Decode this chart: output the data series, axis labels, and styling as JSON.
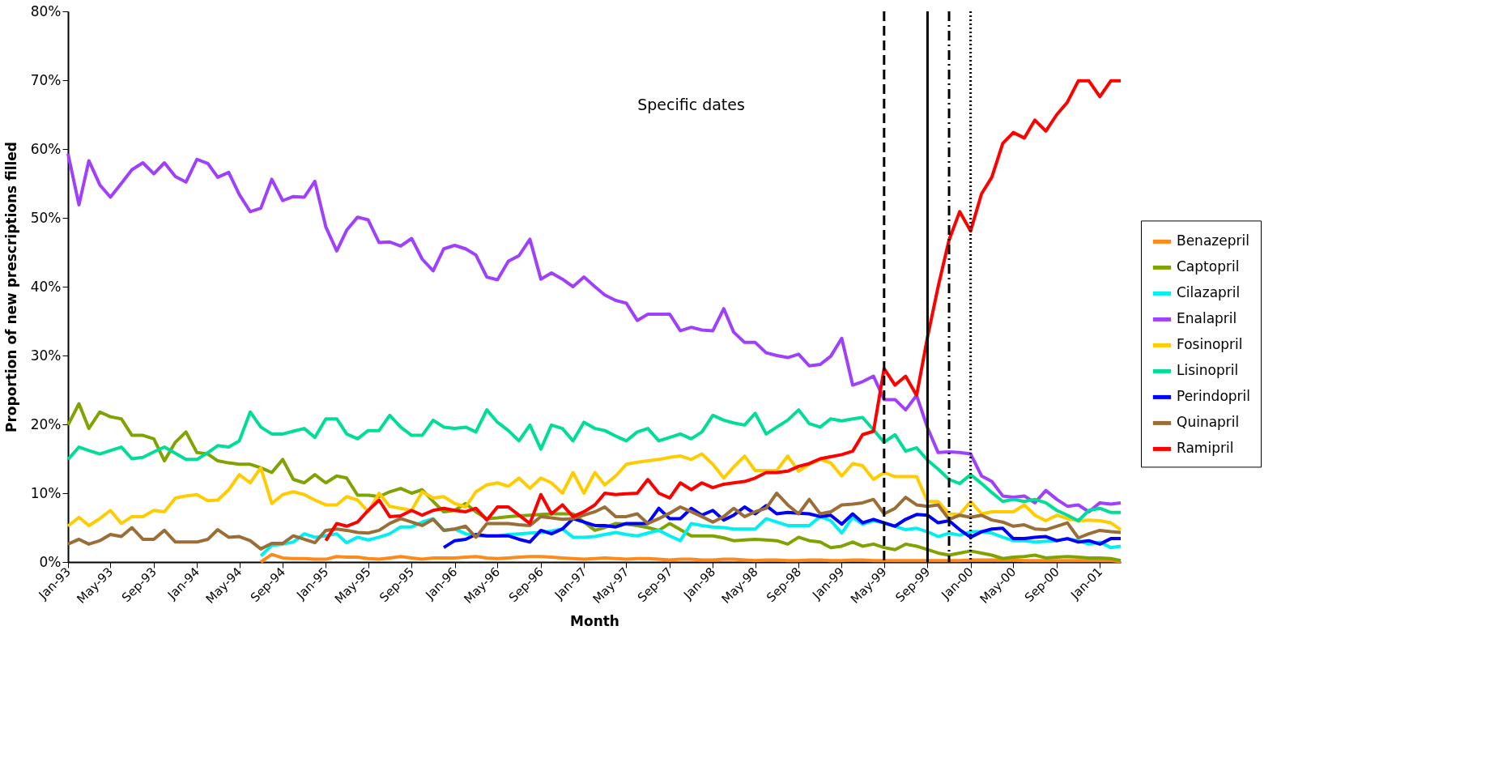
{
  "chart_data": {
    "type": "line",
    "xlabel": "Month",
    "ylabel": "Proportion of new prescriptions filled",
    "x": [
      "1993-01",
      "1993-02",
      "1993-03",
      "1993-04",
      "1993-05",
      "1993-06",
      "1993-07",
      "1993-08",
      "1993-09",
      "1993-10",
      "1993-11",
      "1993-12",
      "1994-01",
      "1994-02",
      "1994-03",
      "1994-04",
      "1994-05",
      "1994-06",
      "1994-07",
      "1994-08",
      "1994-09",
      "1994-10",
      "1994-11",
      "1994-12",
      "1995-01",
      "1995-02",
      "1995-03",
      "1995-04",
      "1995-05",
      "1995-06",
      "1995-07",
      "1995-08",
      "1995-09",
      "1995-10",
      "1995-11",
      "1995-12",
      "1996-01",
      "1996-02",
      "1996-03",
      "1996-04",
      "1996-05",
      "1996-06",
      "1996-07",
      "1996-08",
      "1996-09",
      "1996-10",
      "1996-11",
      "1996-12",
      "1997-01",
      "1997-02",
      "1997-03",
      "1997-04",
      "1997-05",
      "1997-06",
      "1997-07",
      "1997-08",
      "1997-09",
      "1997-10",
      "1997-11",
      "1997-12",
      "1998-01",
      "1998-02",
      "1998-03",
      "1998-04",
      "1998-05",
      "1998-06",
      "1998-07",
      "1998-08",
      "1998-09",
      "1998-10",
      "1998-11",
      "1998-12",
      "1999-01",
      "1999-02",
      "1999-03",
      "1999-04",
      "1999-05",
      "1999-06",
      "1999-07",
      "1999-08",
      "1999-09",
      "1999-10",
      "1999-11",
      "1999-12",
      "2000-01",
      "2000-02",
      "2000-03",
      "2000-04",
      "2000-05",
      "2000-06",
      "2000-07",
      "2000-08",
      "2000-09",
      "2000-10",
      "2000-11",
      "2000-12",
      "2001-01",
      "2001-02",
      "2001-03"
    ],
    "series": [
      {
        "name": "Benazepril",
        "color": "#ff8a1c",
        "values": [
          null,
          null,
          null,
          null,
          null,
          null,
          null,
          null,
          null,
          null,
          null,
          null,
          null,
          null,
          null,
          null,
          null,
          null,
          0,
          1.1,
          0.6,
          0.5,
          0.5,
          0.4,
          0.4,
          0.8,
          0.7,
          0.7,
          0.5,
          0.4,
          0.6,
          0.8,
          0.6,
          0.4,
          0.6,
          0.6,
          0.6,
          0.7,
          0.8,
          0.6,
          0.5,
          0.6,
          0.7,
          0.8,
          0.8,
          0.7,
          0.6,
          0.5,
          0.4,
          0.5,
          0.6,
          0.5,
          0.4,
          0.5,
          0.5,
          0.4,
          0.3,
          0.4,
          0.4,
          0.3,
          0.3,
          0.4,
          0.4,
          0.3,
          0.2,
          0.3,
          0.3,
          0.2,
          0.2,
          0.3,
          0.3,
          0.2,
          0.2,
          0.3,
          0.3,
          0.2,
          0.2,
          0.2,
          0.2,
          0.2,
          0.2,
          0.2,
          0.2,
          0.2,
          0.3,
          0.3,
          0.3,
          0.3,
          0.3,
          0.2,
          0.2,
          0.2,
          0.2,
          0.2,
          0.2,
          0.2,
          0.2,
          0.2,
          0.1
        ]
      },
      {
        "name": "Captopril",
        "color": "#7fa300",
        "values": [
          19.9,
          23,
          19.4,
          21.8,
          21.1,
          20.8,
          18.4,
          18.4,
          17.9,
          14.7,
          17.4,
          18.9,
          15.9,
          15.7,
          14.7,
          14.4,
          14.2,
          14.2,
          13.7,
          13,
          14.9,
          12,
          11.5,
          12.7,
          11.5,
          12.5,
          12.2,
          9.7,
          9.7,
          9.5,
          10.2,
          10.7,
          10,
          10.5,
          8.8,
          7.3,
          7.5,
          8.5,
          7.3,
          6.3,
          6.4,
          6.6,
          6.7,
          6.8,
          6.9,
          7,
          7,
          7,
          5.8,
          4.6,
          5,
          5.6,
          5.5,
          5.3,
          5,
          4.6,
          5.6,
          4.7,
          3.8,
          3.8,
          3.8,
          3.5,
          3.1,
          3.2,
          3.3,
          3.2,
          3.1,
          2.6,
          3.6,
          3.1,
          2.9,
          2.1,
          2.3,
          2.9,
          2.3,
          2.6,
          2.1,
          1.8,
          2.6,
          2.3,
          1.8,
          1.3,
          1,
          1.3,
          1.6,
          1.3,
          1,
          0.5,
          0.7,
          0.8,
          1,
          0.6,
          0.7,
          0.8,
          0.7,
          0.6,
          0.6,
          0.5,
          0.2
        ]
      },
      {
        "name": "Cilazapril",
        "color": "#00f0f0",
        "values": [
          null,
          null,
          null,
          null,
          null,
          null,
          null,
          null,
          null,
          null,
          null,
          null,
          null,
          null,
          null,
          null,
          null,
          null,
          0.9,
          2.4,
          2.6,
          2.9,
          4.1,
          3.6,
          3.8,
          4.1,
          2.8,
          3.6,
          3.2,
          3.6,
          4.1,
          5.1,
          5.1,
          5.8,
          6.3,
          4.6,
          4.8,
          4.1,
          3.8,
          3.8,
          3.8,
          4,
          4.1,
          4.2,
          4.3,
          4.5,
          4.8,
          3.6,
          3.6,
          3.7,
          4,
          4.3,
          4,
          3.8,
          4.2,
          4.6,
          3.8,
          3.1,
          5.6,
          5.3,
          5.1,
          5,
          4.8,
          4.8,
          4.8,
          6.3,
          5.8,
          5.3,
          5.3,
          5.3,
          6.6,
          6,
          4.2,
          6.5,
          5.5,
          6,
          5.7,
          5.2,
          4.7,
          4.9,
          4.4,
          3.7,
          4.2,
          3.9,
          4.4,
          4.4,
          4.2,
          3.6,
          3.1,
          3.1,
          2.9,
          3,
          3.1,
          3.4,
          3.1,
          2.6,
          2.9,
          2.1,
          2.3
        ]
      },
      {
        "name": "Enalapril",
        "color": "#a040ff",
        "values": [
          59.3,
          51.9,
          58.3,
          54.8,
          53,
          55,
          57,
          58,
          56.4,
          58,
          56,
          55.2,
          58.5,
          57.9,
          55.9,
          56.6,
          53.4,
          50.9,
          51.4,
          55.6,
          52.5,
          53.1,
          53,
          55.3,
          48.7,
          45.2,
          48.2,
          50.1,
          49.7,
          46.4,
          46.5,
          45.9,
          47,
          44,
          42.3,
          45.5,
          46,
          45.5,
          44.6,
          41.4,
          41,
          43.7,
          44.5,
          46.9,
          41.1,
          42,
          41.1,
          40,
          41.4,
          40,
          38.8,
          38,
          37.6,
          35.1,
          36,
          36,
          36,
          33.6,
          34.1,
          33.7,
          33.6,
          36.8,
          33.4,
          31.9,
          31.9,
          30.4,
          30,
          29.7,
          30.2,
          28.5,
          28.7,
          29.9,
          32.5,
          25.7,
          26.2,
          27,
          23.6,
          23.6,
          22.1,
          24.2,
          19.5,
          15.9,
          16,
          15.9,
          15.7,
          12.5,
          11.7,
          9.6,
          9.4,
          9.6,
          8.6,
          10.4,
          9.1,
          8.1,
          8.3,
          7.3,
          8.6,
          8.4,
          8.6
        ]
      },
      {
        "name": "Fosinopril",
        "color": "#ffcc00",
        "values": [
          5.2,
          6.5,
          5.3,
          6.3,
          7.5,
          5.6,
          6.6,
          6.6,
          7.5,
          7.3,
          9.3,
          9.6,
          9.8,
          8.9,
          9,
          10.5,
          12.7,
          11.5,
          13.7,
          8.5,
          9.8,
          10.2,
          9.8,
          9,
          8.3,
          8.3,
          9.5,
          9,
          7.3,
          10,
          8.1,
          7.8,
          7.5,
          10.2,
          9.3,
          9.5,
          8.5,
          8,
          10.2,
          11.2,
          11.5,
          11,
          12.2,
          10.7,
          12.2,
          11.5,
          10,
          13,
          10,
          13,
          11.2,
          12.5,
          14.2,
          14.5,
          14.7,
          14.9,
          15.2,
          15.4,
          14.9,
          15.7,
          14.2,
          12.2,
          13.8,
          15.4,
          13.3,
          13.3,
          13.3,
          15.4,
          13.2,
          14.2,
          14.9,
          14.4,
          12.5,
          14.3,
          14,
          12,
          13,
          12.4,
          12.4,
          12.4,
          8.8,
          8.8,
          7,
          6.9,
          8.8,
          7,
          7.3,
          7.3,
          7.3,
          8.3,
          6.8,
          6,
          6.8,
          6.3,
          6,
          6.1,
          6,
          5.7,
          4.7
        ]
      },
      {
        "name": "Lisinopril",
        "color": "#00dd99",
        "values": [
          14.9,
          16.7,
          16.2,
          15.7,
          16.2,
          16.7,
          15,
          15.2,
          16,
          16.7,
          15.8,
          14.9,
          14.9,
          15.9,
          16.9,
          16.7,
          17.6,
          21.8,
          19.6,
          18.6,
          18.6,
          19,
          19.4,
          18.1,
          20.8,
          20.8,
          18.6,
          17.9,
          19.1,
          19.1,
          21.3,
          19.6,
          18.4,
          18.4,
          20.6,
          19.6,
          19.4,
          19.6,
          18.9,
          22.1,
          20.3,
          19.1,
          17.6,
          19.9,
          16.4,
          19.9,
          19.4,
          17.6,
          20.3,
          19.4,
          19.1,
          18.3,
          17.6,
          18.9,
          19.4,
          17.6,
          18.1,
          18.6,
          17.9,
          18.9,
          21.3,
          20.6,
          20.2,
          19.9,
          21.6,
          18.6,
          19.6,
          20.6,
          22.1,
          20.1,
          19.6,
          20.8,
          20.5,
          20.8,
          21,
          19.2,
          17.4,
          18.5,
          16.1,
          16.6,
          14.8,
          13.5,
          12,
          11.4,
          12.7,
          11.4,
          10.1,
          8.8,
          9.1,
          8.8,
          9.1,
          8.6,
          7.5,
          6.8,
          6,
          7.5,
          7.8,
          7.2,
          7.2
        ]
      },
      {
        "name": "Perindopril",
        "color": "#0000ff",
        "values": [
          null,
          null,
          null,
          null,
          null,
          null,
          null,
          null,
          null,
          null,
          null,
          null,
          null,
          null,
          null,
          null,
          null,
          null,
          null,
          null,
          null,
          null,
          null,
          null,
          null,
          null,
          null,
          null,
          null,
          null,
          null,
          null,
          null,
          null,
          null,
          2.1,
          3.1,
          3.3,
          4,
          3.8,
          3.8,
          3.8,
          3.3,
          2.9,
          4.6,
          4.1,
          4.8,
          6.3,
          5.8,
          5.3,
          5.3,
          5.1,
          5.6,
          5.6,
          5.6,
          7.8,
          6.3,
          6.3,
          7.8,
          6.8,
          7.5,
          6.1,
          6.8,
          8,
          7,
          8.2,
          7,
          7.2,
          7.1,
          7,
          6.6,
          6.8,
          5.5,
          7,
          5.7,
          6.2,
          5.7,
          5.2,
          6.2,
          6.9,
          6.8,
          5.7,
          6,
          4.7,
          3.6,
          4.4,
          4.8,
          4.9,
          3.4,
          3.4,
          3.6,
          3.7,
          3.1,
          3.4,
          2.9,
          3.1,
          2.6,
          3.4,
          3.4
        ]
      },
      {
        "name": "Quinapril",
        "color": "#9a6e36",
        "values": [
          2.6,
          3.3,
          2.6,
          3.1,
          4,
          3.7,
          5,
          3.3,
          3.3,
          4.6,
          2.9,
          2.9,
          2.9,
          3.3,
          4.7,
          3.6,
          3.7,
          3.1,
          1.9,
          2.7,
          2.7,
          3.8,
          3.3,
          2.8,
          4.6,
          4.8,
          4.6,
          4.3,
          4.2,
          4.6,
          5.6,
          6.3,
          5.8,
          5.3,
          6.2,
          4.6,
          4.8,
          5.2,
          3.6,
          5.6,
          5.6,
          5.6,
          5.4,
          5.3,
          6.6,
          6.4,
          6.2,
          6.3,
          6.8,
          7.3,
          8,
          6.6,
          6.6,
          7,
          5.6,
          6.3,
          7.1,
          8,
          7.3,
          6.6,
          5.8,
          6.6,
          7.8,
          6.6,
          7.3,
          7.8,
          10,
          8.3,
          7,
          9.1,
          7,
          7.3,
          8.3,
          8.4,
          8.6,
          9.1,
          7,
          7.8,
          9.4,
          8.3,
          8.1,
          8.3,
          6.2,
          6.8,
          6.5,
          6.8,
          6.1,
          5.8,
          5.2,
          5.4,
          4.8,
          4.7,
          5.2,
          5.7,
          3.5,
          4.1,
          4.6,
          4.4,
          4.3
        ]
      },
      {
        "name": "Ramipril",
        "color": "#ff0000",
        "values": [
          null,
          null,
          null,
          null,
          null,
          null,
          null,
          null,
          null,
          null,
          null,
          null,
          null,
          null,
          null,
          null,
          null,
          null,
          null,
          null,
          null,
          null,
          null,
          null,
          3.1,
          5.6,
          5.2,
          5.8,
          7.5,
          9,
          6.6,
          6.7,
          7.5,
          6.8,
          7.5,
          7.8,
          7.5,
          7.3,
          7.8,
          6.1,
          8,
          8,
          6.8,
          5.6,
          9.8,
          7,
          8.3,
          6.6,
          7.3,
          8.3,
          10,
          9.8,
          9.9,
          10,
          12,
          10,
          9.3,
          11.5,
          10.5,
          11.5,
          10.8,
          11.3,
          11.5,
          11.7,
          12.2,
          13,
          13,
          13.2,
          13.9,
          14.3,
          15,
          15.3,
          15.6,
          16.1,
          18.5,
          19,
          28.1,
          25.7,
          27,
          24.2,
          32.7,
          40,
          46.8,
          50.9,
          48.1,
          53.5,
          55.9,
          60.8,
          62.4,
          61.6,
          64.2,
          62.6,
          65,
          66.8,
          69.9,
          69.9,
          67.6,
          69.9,
          69.9
        ]
      }
    ],
    "xlim": [
      "1993-01",
      "2001-03"
    ],
    "xticks": [
      {
        "value": "1993-01",
        "label": "Jan-93"
      },
      {
        "value": "1993-05",
        "label": "May-93"
      },
      {
        "value": "1993-09",
        "label": "Sep-93"
      },
      {
        "value": "1994-01",
        "label": "Jan-94"
      },
      {
        "value": "1994-05",
        "label": "May-94"
      },
      {
        "value": "1994-09",
        "label": "Sep-94"
      },
      {
        "value": "1995-01",
        "label": "Jan-95"
      },
      {
        "value": "1995-05",
        "label": "May-95"
      },
      {
        "value": "1995-09",
        "label": "Sep-95"
      },
      {
        "value": "1996-01",
        "label": "Jan-96"
      },
      {
        "value": "1996-05",
        "label": "May-96"
      },
      {
        "value": "1996-09",
        "label": "Sep-96"
      },
      {
        "value": "1997-01",
        "label": "Jan-97"
      },
      {
        "value": "1997-05",
        "label": "May-97"
      },
      {
        "value": "1997-09",
        "label": "Sep-97"
      },
      {
        "value": "1998-01",
        "label": "Jan-98"
      },
      {
        "value": "1998-05",
        "label": "May-98"
      },
      {
        "value": "1998-09",
        "label": "Sep-98"
      },
      {
        "value": "1999-01",
        "label": "Jan-99"
      },
      {
        "value": "1999-05",
        "label": "May-99"
      },
      {
        "value": "1999-09",
        "label": "Sep-99"
      },
      {
        "value": "2000-01",
        "label": "Jan-00"
      },
      {
        "value": "2000-05",
        "label": "May-00"
      },
      {
        "value": "2000-09",
        "label": "Sep-00"
      },
      {
        "value": "2001-01",
        "label": "Jan-01"
      }
    ],
    "ylim": [
      0,
      80
    ],
    "yticks": [
      {
        "value": 0,
        "label": "0%"
      },
      {
        "value": 10,
        "label": "10%"
      },
      {
        "value": 20,
        "label": "20%"
      },
      {
        "value": 30,
        "label": "30%"
      },
      {
        "value": 40,
        "label": "40%"
      },
      {
        "value": 50,
        "label": "50%"
      },
      {
        "value": 60,
        "label": "60%"
      },
      {
        "value": 70,
        "label": "70%"
      },
      {
        "value": 80,
        "label": "80%"
      }
    ],
    "ref_lines": [
      {
        "axis": "x",
        "value": "1999-05",
        "color": "#000000",
        "line_style": "dashed"
      },
      {
        "axis": "x",
        "value": "1999-09",
        "color": "#000000",
        "line_style": "solid"
      },
      {
        "axis": "x",
        "value": "1999-11",
        "color": "#000000",
        "line_style": "dashdot"
      },
      {
        "axis": "x",
        "value": "2000-01",
        "color": "#000000",
        "line_style": "dotted"
      }
    ],
    "annotations": [
      "Specific dates"
    ],
    "legend": "right",
    "grid": false,
    "marker": "none",
    "line_style": "solid"
  }
}
